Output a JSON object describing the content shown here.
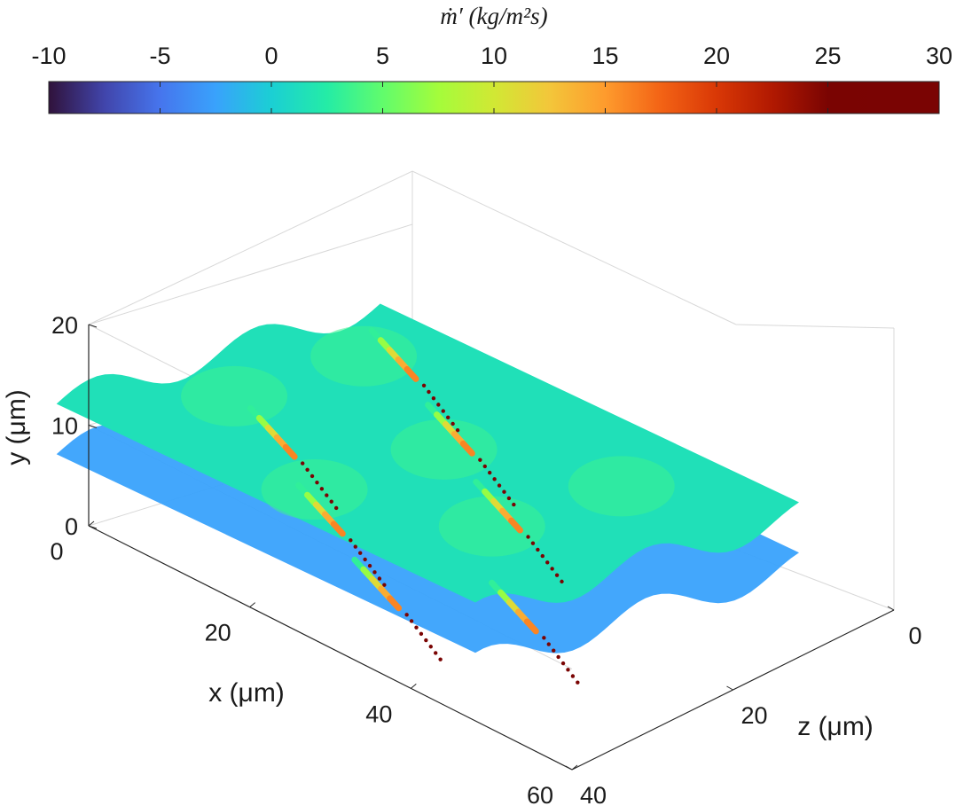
{
  "chart_data": {
    "type": "surface3d",
    "colorbar": {
      "title": "ṁ′   (kg/m²s)",
      "ticks": [
        "-10",
        "-5",
        "0",
        "5",
        "10",
        "15",
        "20",
        "25",
        "30"
      ],
      "range": [
        -10,
        30
      ],
      "colormap": "turbo",
      "stops": [
        "#30123b",
        "#4145ab",
        "#4675ed",
        "#39a2fc",
        "#1bcfd4",
        "#24eca6",
        "#61fc6c",
        "#a4fc3b",
        "#d1e834",
        "#f3c63a",
        "#fe9b2d",
        "#f36315",
        "#d93806",
        "#b11901",
        "#7a0402",
        "#7a0403",
        "#7a0403"
      ]
    },
    "x_axis": {
      "label": "x (μm)",
      "ticks": [
        "0",
        "20",
        "40",
        "60"
      ],
      "range": [
        0,
        60
      ]
    },
    "y_axis": {
      "label": "y (μm)",
      "ticks": [
        "0",
        "10",
        "20"
      ],
      "range": [
        0,
        20
      ]
    },
    "z_axis": {
      "label": "z (μm)",
      "ticks": [
        "0",
        "20",
        "40"
      ],
      "range": [
        0,
        40
      ]
    },
    "background_value": 1.5,
    "streaks": [
      {
        "values": [
          0,
          3,
          7,
          11,
          14,
          16
        ]
      },
      {
        "values": [
          0,
          3,
          7,
          11,
          14,
          16
        ]
      },
      {
        "values": [
          0,
          3,
          7,
          11,
          14,
          16
        ]
      },
      {
        "values": [
          0,
          3,
          7,
          11,
          14,
          16
        ]
      },
      {
        "values": [
          0,
          3,
          7,
          11,
          14,
          16
        ]
      },
      {
        "values": [
          0,
          3,
          7,
          11,
          14,
          16
        ]
      },
      {
        "values": [
          0,
          3,
          7,
          11,
          14,
          16
        ]
      }
    ],
    "grid": true
  }
}
